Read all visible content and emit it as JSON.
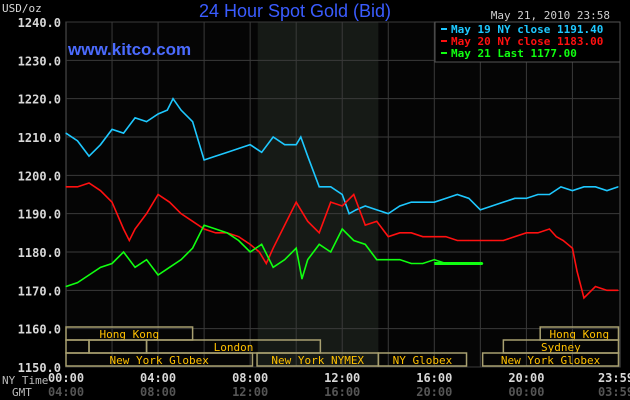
{
  "chart_data": {
    "type": "line",
    "title": "24 Hour Spot Gold (Bid)",
    "site": "www.kitco.com",
    "timestamp": "May 21, 2010 23:58",
    "ylabel": "USD/oz",
    "ylim": [
      1150,
      1240
    ],
    "yticks": [
      "1150.0",
      "1160.0",
      "1170.0",
      "1180.0",
      "1190.0",
      "1200.0",
      "1210.0",
      "1220.0",
      "1230.0",
      "1240.0"
    ],
    "xlim_hours": [
      0,
      24
    ],
    "ny_time_label": "NY Time",
    "gmt_label": "GMT",
    "xticks": [
      {
        "h": 0,
        "ny": "00:00",
        "gmt": "04:00"
      },
      {
        "h": 4,
        "ny": "04:00",
        "gmt": "08:00"
      },
      {
        "h": 8,
        "ny": "08:00",
        "gmt": "12:00"
      },
      {
        "h": 12,
        "ny": "12:00",
        "gmt": "16:00"
      },
      {
        "h": 16,
        "ny": "16:00",
        "gmt": "20:00"
      },
      {
        "h": 20,
        "ny": "20:00",
        "gmt": "00:00"
      },
      {
        "h": 23.98,
        "ny": "23:59",
        "gmt": "03:59"
      }
    ],
    "grid": true,
    "legend_placement": "top-right",
    "shaded_session_hours": [
      8.33,
      13.57
    ],
    "sessions": [
      {
        "row": 0,
        "label": "Hong Kong",
        "start": 0,
        "end": 5.5
      },
      {
        "row": 0,
        "label": "Hong Kong",
        "start": 20.6,
        "end": 24
      },
      {
        "row": 1,
        "label": "",
        "start": 0,
        "end": 1
      },
      {
        "row": 1,
        "label": "",
        "start": 1,
        "end": 3.5
      },
      {
        "row": 1,
        "label": "London",
        "start": 3.5,
        "end": 11.05
      },
      {
        "row": 1,
        "label": "Sydney",
        "start": 19,
        "end": 24
      },
      {
        "row": 2,
        "label": "New York Globex",
        "start": 0,
        "end": 8.1
      },
      {
        "row": 2,
        "label": "New York NYMEX",
        "start": 8.3,
        "end": 13.57
      },
      {
        "row": 2,
        "label": "NY Globex",
        "start": 13.57,
        "end": 17.4
      },
      {
        "row": 2,
        "label": "New York Globex",
        "start": 18.1,
        "end": 24
      }
    ],
    "series": [
      {
        "name": "May 19 NY close 1191.40",
        "color": "#1ec8ff",
        "x": [
          0,
          0.5,
          1,
          1.5,
          2,
          2.5,
          3,
          3.5,
          4,
          4.4,
          4.65,
          5,
          5.5,
          6,
          6.5,
          7,
          7.5,
          8,
          8.5,
          9,
          9.5,
          10,
          10.2,
          10.5,
          11,
          11.5,
          12,
          12.3,
          12.6,
          13,
          13.5,
          14,
          14.5,
          15,
          15.5,
          16,
          16.5,
          17,
          17.5,
          18,
          18.5,
          19,
          19.5,
          20,
          20.5,
          21,
          21.5,
          22,
          22.5,
          23,
          23.5,
          23.98
        ],
        "y": [
          1211,
          1209,
          1205,
          1208,
          1212,
          1211,
          1215,
          1214,
          1216,
          1217,
          1220,
          1217,
          1214,
          1204,
          1205,
          1206,
          1207,
          1208,
          1206,
          1210,
          1208,
          1208,
          1210,
          1205,
          1197,
          1197,
          1195,
          1190,
          1191,
          1192,
          1191,
          1190,
          1192,
          1193,
          1193,
          1193,
          1194,
          1195,
          1194,
          1191,
          1192,
          1193,
          1194,
          1194,
          1195,
          1195,
          1197,
          1196,
          1197,
          1197,
          1196,
          1197
        ]
      },
      {
        "name": "May 20 NY close 1183.00",
        "color": "#ff1010",
        "x": [
          0,
          0.5,
          1,
          1.5,
          2,
          2.5,
          2.75,
          3,
          3.5,
          4,
          4.5,
          5,
          5.5,
          6,
          6.5,
          7,
          7.5,
          8,
          8.4,
          8.7,
          9,
          9.5,
          10,
          10.5,
          11,
          11.5,
          12,
          12.5,
          13,
          13.5,
          14,
          14.5,
          15,
          15.5,
          16,
          16.5,
          17,
          17.5,
          18,
          18.5,
          19,
          19.5,
          20,
          20.5,
          21,
          21.3,
          21.6,
          22,
          22.2,
          22.5,
          23,
          23.5,
          23.98
        ],
        "y": [
          1197,
          1197,
          1198,
          1196,
          1193,
          1186,
          1183,
          1186,
          1190,
          1195,
          1193,
          1190,
          1188,
          1186,
          1185,
          1185,
          1184,
          1182,
          1180,
          1177,
          1181,
          1187,
          1193,
          1188,
          1185,
          1193,
          1192,
          1195,
          1187,
          1188,
          1184,
          1185,
          1185,
          1184,
          1184,
          1184,
          1183,
          1183,
          1183,
          1183,
          1183,
          1184,
          1185,
          1185,
          1186,
          1184,
          1183,
          1181,
          1175,
          1168,
          1171,
          1170,
          1170
        ]
      },
      {
        "name": "May 21 Last 1177.00",
        "color": "#10ff10",
        "x": [
          0,
          0.5,
          1,
          1.5,
          2,
          2.5,
          3,
          3.5,
          4,
          4.5,
          5,
          5.5,
          6,
          6.5,
          7,
          7.5,
          8,
          8.5,
          9,
          9.5,
          10,
          10.25,
          10.5,
          10.75,
          11,
          11.5,
          12,
          12.5,
          13,
          13.5,
          14,
          14.5,
          15,
          15.5,
          16,
          16.5,
          17,
          17.5,
          18.1
        ],
        "y": [
          1171,
          1172,
          1174,
          1176,
          1177,
          1180,
          1176,
          1178,
          1174,
          1176,
          1178,
          1181,
          1187,
          1186,
          1185,
          1183,
          1180,
          1182,
          1176,
          1178,
          1181,
          1173,
          1178,
          1180,
          1182,
          1180,
          1186,
          1183,
          1182,
          1178,
          1178,
          1178,
          1177,
          1177,
          1178,
          1177,
          1177,
          1177,
          1177
        ]
      }
    ]
  }
}
